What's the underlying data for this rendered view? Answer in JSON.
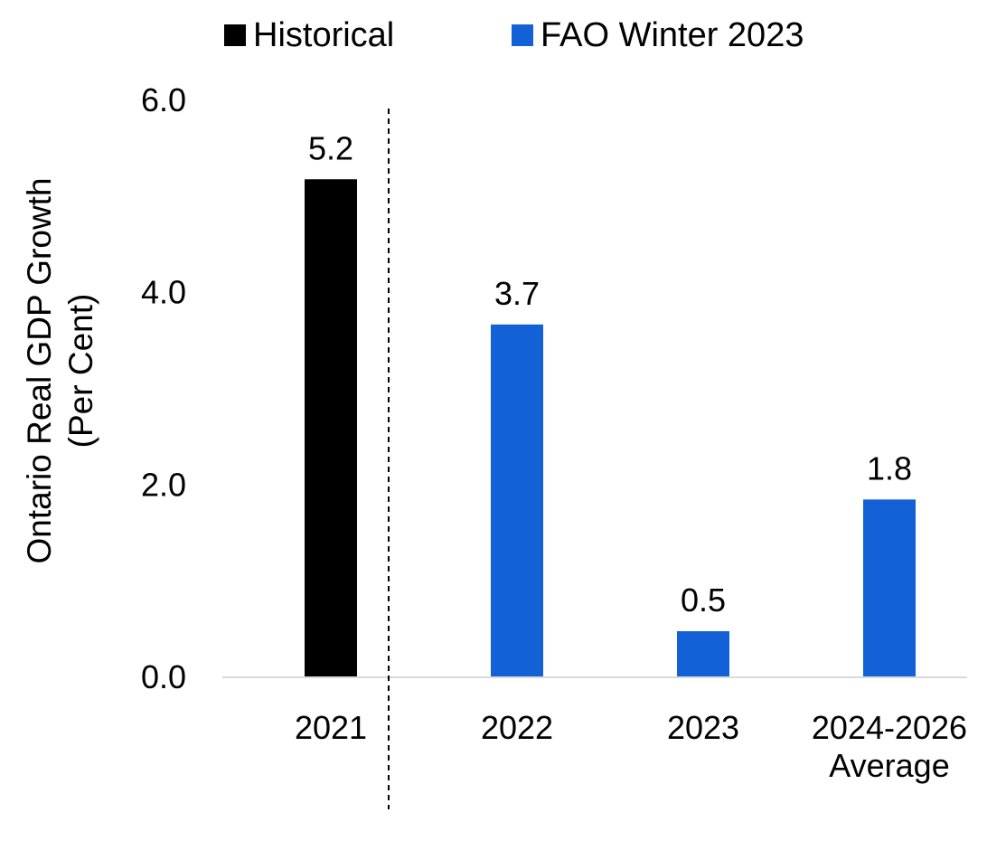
{
  "chart_data": {
    "type": "bar",
    "title": "",
    "xlabel": "",
    "ylabel": [
      "Ontario Real GDP Growth",
      "(Per Cent)"
    ],
    "categories": [
      [
        "2021"
      ],
      [
        "2022"
      ],
      [
        "2023"
      ],
      [
        "2024-2026",
        "Average"
      ]
    ],
    "series": [
      {
        "name": "Historical",
        "color": "#000000",
        "values": [
          5.2,
          null,
          null,
          null
        ]
      },
      {
        "name": "FAO Winter 2023",
        "color": "#1261D6",
        "values": [
          null,
          3.7,
          0.5,
          1.8
        ]
      }
    ],
    "data_labels": [
      "5.2",
      "3.7",
      "0.5",
      "1.8"
    ],
    "bar_values_precise": [
      5.17,
      3.66,
      0.47,
      1.84
    ],
    "ylim": [
      0,
      6
    ],
    "yticks": [
      "0.0",
      "2.0",
      "4.0",
      "6.0"
    ],
    "legend_position": "top",
    "grid": false,
    "divider": "dashed vertical line between 2021 and 2022"
  }
}
